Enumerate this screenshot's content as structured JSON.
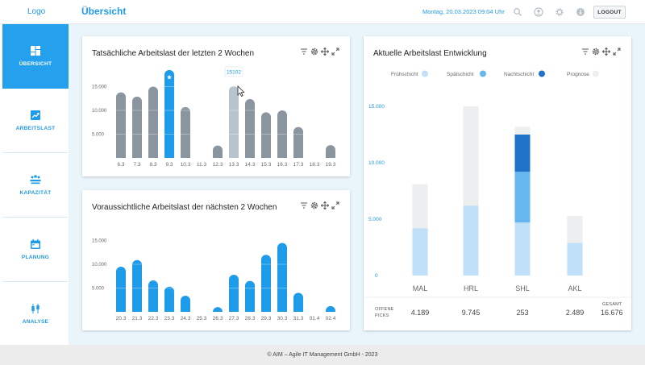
{
  "header": {
    "logo": "Logo",
    "title": "Übersicht",
    "datetime": "Montag, 20.03.2023   09:04 Uhr",
    "icons": [
      "search-icon",
      "user-icon",
      "gear-icon",
      "info-icon"
    ],
    "logout_label": "LOGOUT"
  },
  "sidebar": {
    "items": [
      {
        "label": "ÜBERSICHT",
        "icon": "dashboard-icon",
        "active": true
      },
      {
        "label": "ARBEITSLAST",
        "icon": "trend-chart-icon",
        "active": false
      },
      {
        "label": "KAPAZITÄT",
        "icon": "people-icon",
        "active": false
      },
      {
        "label": "PLANUNG",
        "icon": "calendar-icon",
        "active": false
      },
      {
        "label": "ANALYSE",
        "icon": "candlestick-icon",
        "active": false
      }
    ]
  },
  "card_tools": [
    "filter-icon",
    "gear-icon",
    "move-icon",
    "expand-icon"
  ],
  "footer": {
    "text": "© AIM – Agile IT Management GmbH - 2023"
  },
  "chart_data": [
    {
      "type": "bar",
      "title": "Tatsächliche Arbeitslast der letzten 2 Wochen",
      "categories": [
        "6.3",
        "7.3",
        "8.3",
        "9.3",
        "10.3",
        "11.3",
        "12.3",
        "13.3",
        "14.3",
        "15.3",
        "16.3",
        "17.3",
        "18.3",
        "19.3"
      ],
      "values": [
        13800,
        12900,
        15000,
        18500,
        10700,
        0,
        2600,
        15102,
        12400,
        9600,
        10000,
        6500,
        0,
        2700
      ],
      "highlighted": {
        "category": "9.3",
        "marker": "star-icon",
        "color": "#1e9be9"
      },
      "hovered": {
        "category": "13.3",
        "tooltip": "15102",
        "color": "#b7c3cd"
      },
      "bar_color": "#8a959f",
      "yticks": [
        "5.000",
        "10.000",
        "15.000"
      ],
      "ylim": [
        0,
        20000
      ]
    },
    {
      "type": "bar",
      "title": "Voraussichtliche Arbeitslast der nächsten 2 Wochen",
      "categories": [
        "20.3",
        "21.3",
        "22.3",
        "23.3",
        "24.3",
        "25.3",
        "26.3",
        "27.3",
        "28.3",
        "29.3",
        "30.3",
        "31.3",
        "01.4",
        "02.4"
      ],
      "values": [
        9500,
        10900,
        6600,
        5300,
        3400,
        0,
        1000,
        7800,
        6500,
        12000,
        14500,
        4000,
        0,
        1200
      ],
      "bar_color": "#1e9be9",
      "yticks": [
        "5.000",
        "10.000",
        "15.000"
      ],
      "ylim": [
        0,
        20000
      ]
    },
    {
      "type": "bar",
      "stacked": true,
      "title": "Aktuelle Arbeitslast Entwicklung",
      "legend": [
        {
          "name": "Frühschicht",
          "color": "#bfe0f8"
        },
        {
          "name": "Spätschicht",
          "color": "#66b6f0"
        },
        {
          "name": "Nachtschicht",
          "color": "#1f72c9"
        },
        {
          "name": "Prognose",
          "color": "#eceef0"
        }
      ],
      "categories": [
        "MAL",
        "HRL",
        "SHL",
        "AKL"
      ],
      "series": [
        {
          "name": "Frühschicht",
          "values": [
            4200,
            6200,
            4700,
            2900
          ]
        },
        {
          "name": "Spätschicht",
          "values": [
            0,
            0,
            4500,
            0
          ]
        },
        {
          "name": "Nachtschicht",
          "values": [
            0,
            0,
            3300,
            0
          ]
        },
        {
          "name": "Prognose",
          "values": [
            3900,
            8800,
            700,
            2400
          ]
        }
      ],
      "yticks": [
        "0",
        "5.000",
        "10.000",
        "15.000"
      ],
      "ylim": [
        0,
        15000
      ],
      "picks_label": "OFFENE PICKS",
      "picks": [
        "4.189",
        "9.745",
        "253",
        "2.489"
      ],
      "total_label": "GESAMT",
      "total": "16.676"
    }
  ]
}
